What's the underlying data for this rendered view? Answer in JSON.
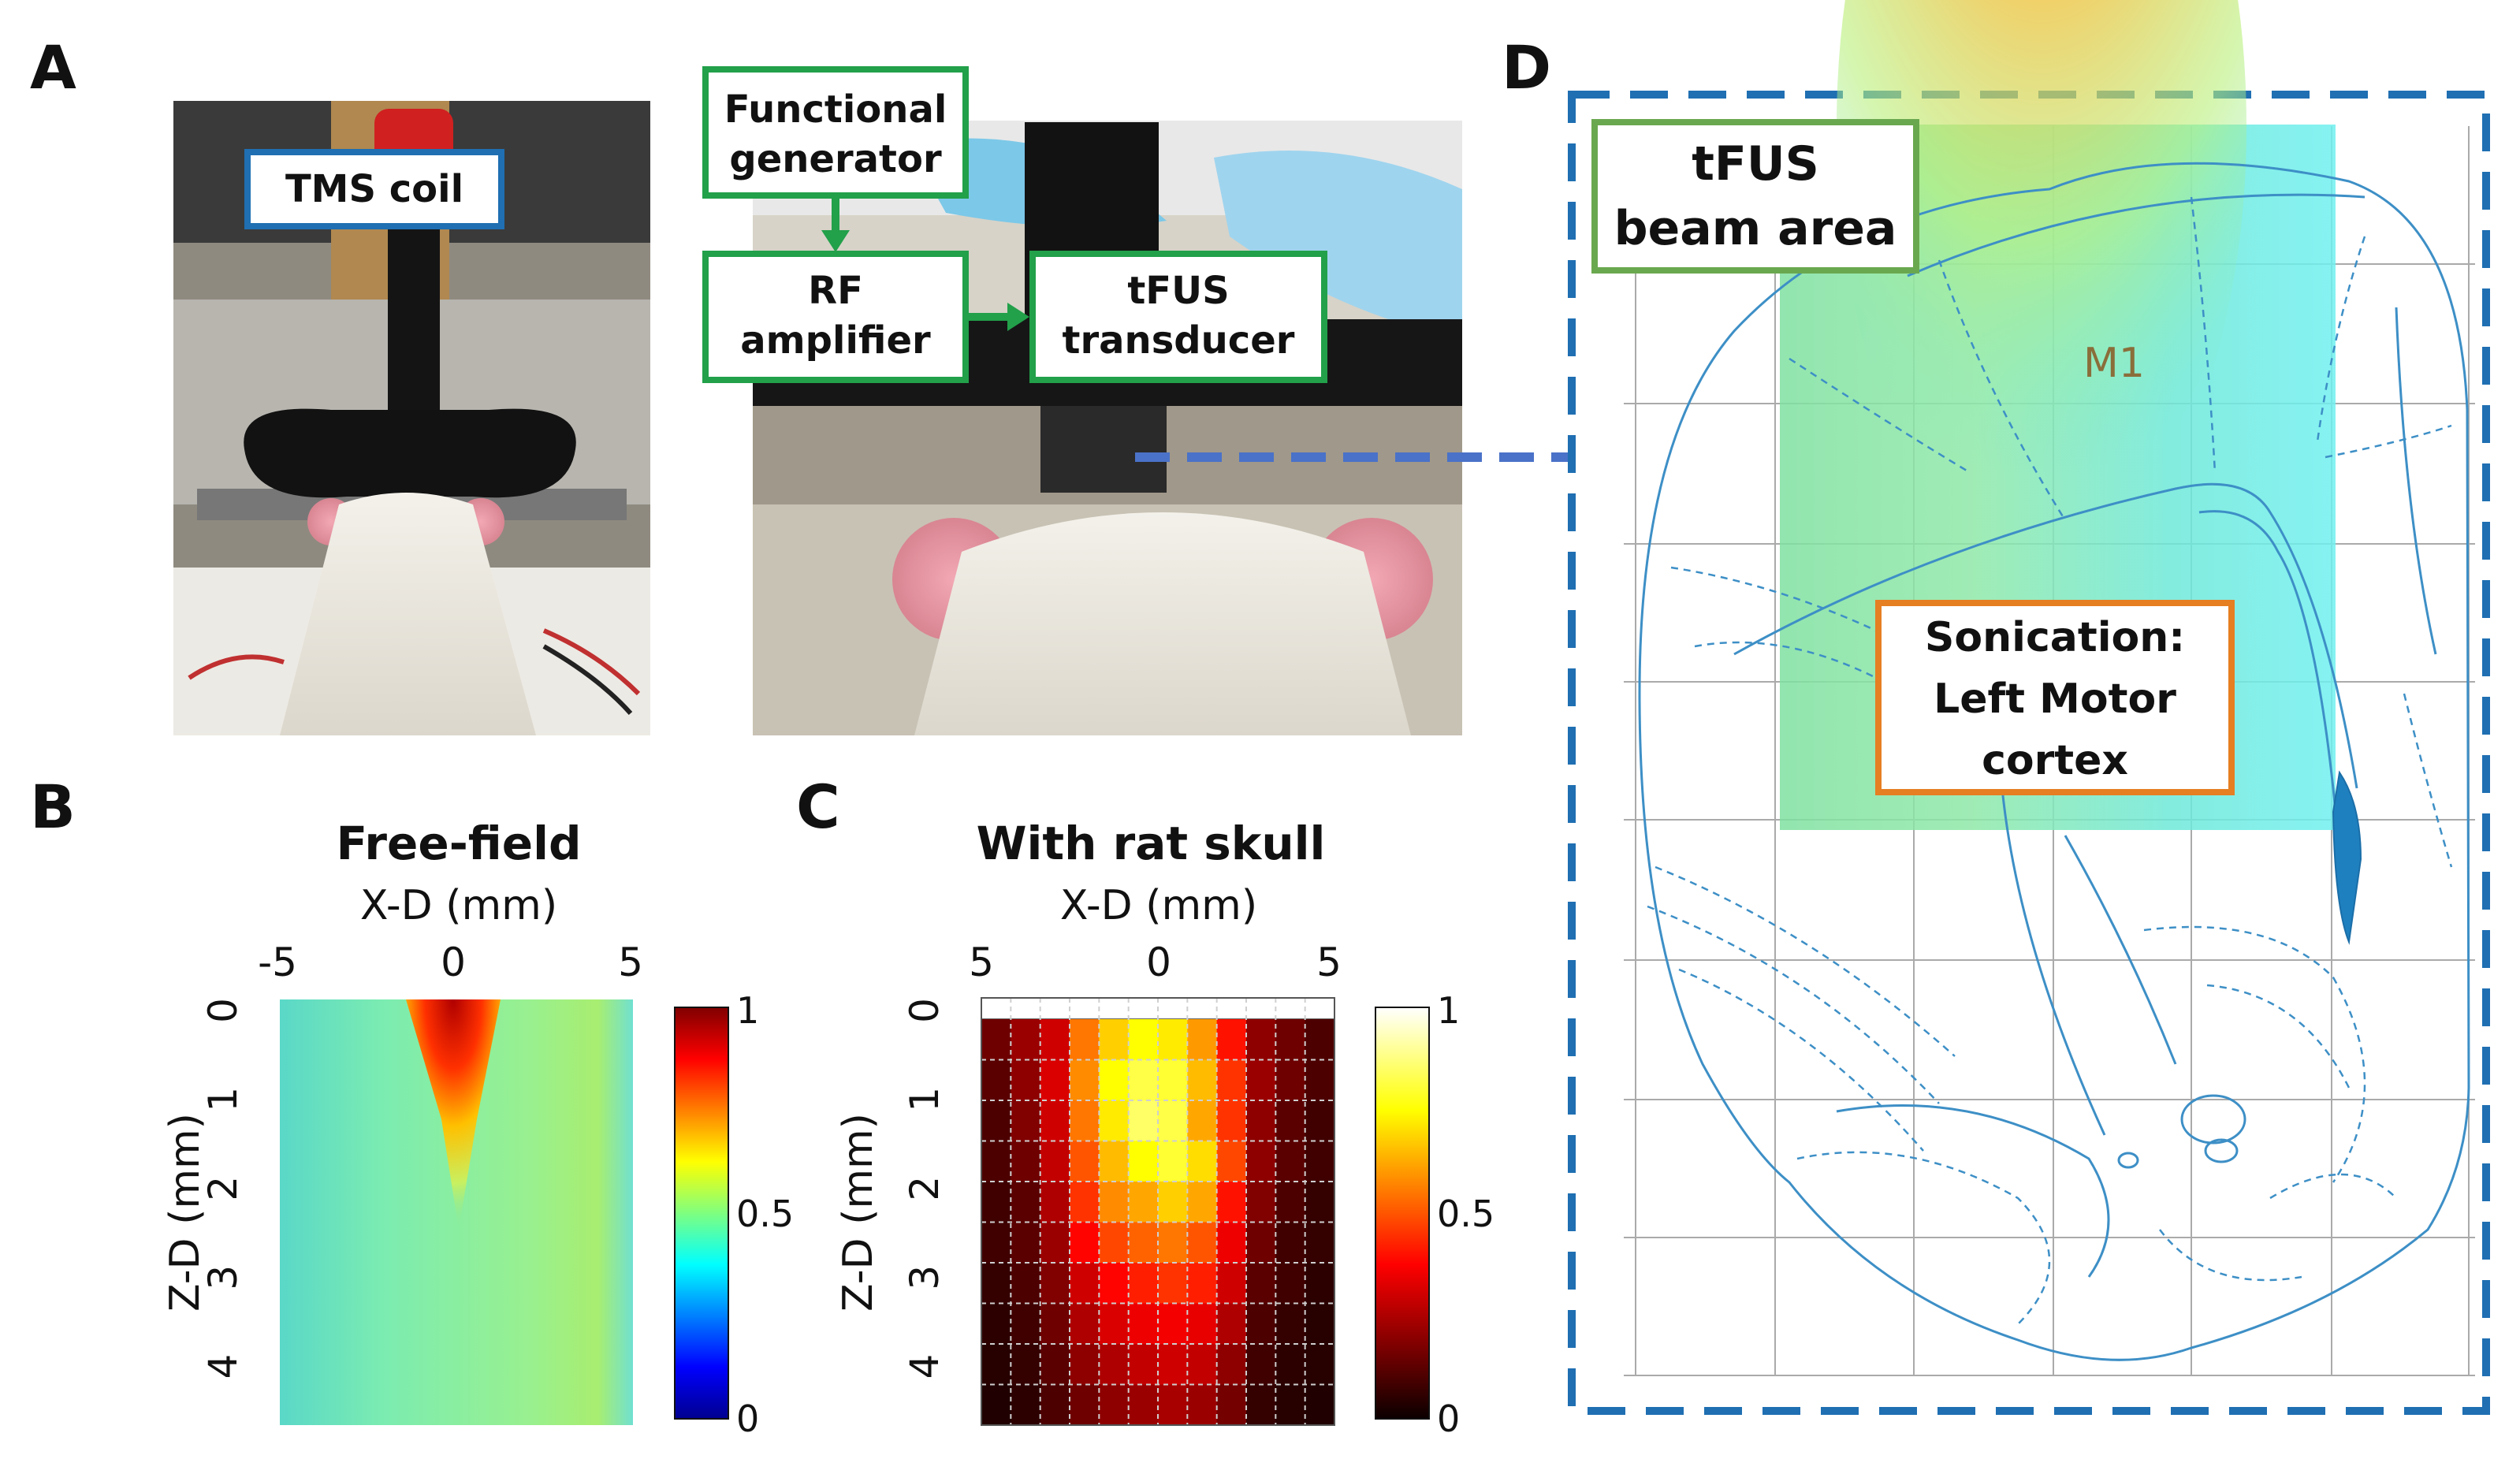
{
  "panels": {
    "A": {
      "label": "A",
      "tms_coil_label": "TMS coil",
      "functional_generator_label": "Functional generator",
      "functional_generator_lines": [
        "Functional",
        "generator"
      ],
      "rf_amplifier_lines": [
        "RF",
        "amplifier"
      ],
      "tfus_transducer_lines": [
        "tFUS",
        "transducer"
      ],
      "colors": {
        "tms_box": "#1f6fb2",
        "setup_boxes": "#22a04a",
        "arrow": "#22a04a"
      }
    },
    "B": {
      "label": "B"
    },
    "C": {
      "label": "C"
    },
    "D": {
      "label": "D",
      "beam_area_lines": [
        "tFUS",
        "beam area"
      ],
      "region_label": "M1",
      "sonication_lines": [
        "Sonication:",
        "Left Motor",
        "cortex"
      ],
      "colors": {
        "frame": "#1f6fb2",
        "beam_box": "#6aa84f",
        "sonication_box": "#e67e22",
        "atlas_lines": "#3d8fc6"
      }
    }
  },
  "chart_data": [
    {
      "type": "heatmap",
      "panel": "B",
      "title": "Free-field",
      "xlabel": "X-D (mm)",
      "ylabel": "Z-D (mm)",
      "x_ticks": [
        "-5",
        "0",
        "5"
      ],
      "y_ticks": [
        "0",
        "1",
        "2",
        "3",
        "4"
      ],
      "xlim": [
        -5,
        5
      ],
      "ylim": [
        0,
        4.5
      ],
      "colormap": "jet",
      "colorbar_ticks": [
        "1",
        "0.5",
        "0"
      ],
      "colorbar_range": [
        0,
        1
      ],
      "description_of_field": "narrow high-intensity beam centred at X=0 from Z=0 to about Z=2.2 mm, background about 0.45-0.55",
      "peak": {
        "x": 0,
        "z": 0,
        "value": 1.0
      },
      "background_level": 0.5
    },
    {
      "type": "heatmap",
      "panel": "C",
      "title": "With rat skull",
      "xlabel": "X-D (mm)",
      "ylabel": "Z-D (mm)",
      "x_ticks": [
        "5",
        "0",
        "5"
      ],
      "y_ticks": [
        "0",
        "1",
        "2",
        "3",
        "4"
      ],
      "xlim": [
        -5,
        5
      ],
      "ylim": [
        0,
        4.5
      ],
      "colormap": "hot",
      "colorbar_ticks": [
        "1",
        "0.5",
        "0"
      ],
      "colorbar_range": [
        0,
        1
      ],
      "grid": true,
      "grid_size": [
        12,
        10
      ],
      "values": [
        [
          0.15,
          0.22,
          0.3,
          0.55,
          0.68,
          0.75,
          0.72,
          0.6,
          0.4,
          0.2,
          0.15,
          0.1
        ],
        [
          0.12,
          0.2,
          0.32,
          0.58,
          0.75,
          0.82,
          0.8,
          0.65,
          0.45,
          0.22,
          0.15,
          0.1
        ],
        [
          0.1,
          0.18,
          0.3,
          0.55,
          0.72,
          0.85,
          0.82,
          0.62,
          0.45,
          0.2,
          0.12,
          0.08
        ],
        [
          0.1,
          0.15,
          0.28,
          0.5,
          0.65,
          0.75,
          0.8,
          0.7,
          0.48,
          0.2,
          0.12,
          0.08
        ],
        [
          0.08,
          0.12,
          0.25,
          0.45,
          0.58,
          0.62,
          0.68,
          0.62,
          0.4,
          0.18,
          0.1,
          0.06
        ],
        [
          0.08,
          0.12,
          0.22,
          0.38,
          0.48,
          0.52,
          0.55,
          0.5,
          0.35,
          0.15,
          0.08,
          0.06
        ],
        [
          0.06,
          0.1,
          0.18,
          0.3,
          0.38,
          0.42,
          0.45,
          0.42,
          0.3,
          0.12,
          0.08,
          0.05
        ],
        [
          0.05,
          0.08,
          0.15,
          0.25,
          0.32,
          0.35,
          0.36,
          0.34,
          0.25,
          0.1,
          0.06,
          0.04
        ],
        [
          0.04,
          0.06,
          0.12,
          0.2,
          0.25,
          0.28,
          0.3,
          0.28,
          0.2,
          0.08,
          0.05,
          0.04
        ],
        [
          0.03,
          0.05,
          0.1,
          0.15,
          0.2,
          0.22,
          0.24,
          0.22,
          0.16,
          0.06,
          0.04,
          0.03
        ]
      ]
    }
  ]
}
